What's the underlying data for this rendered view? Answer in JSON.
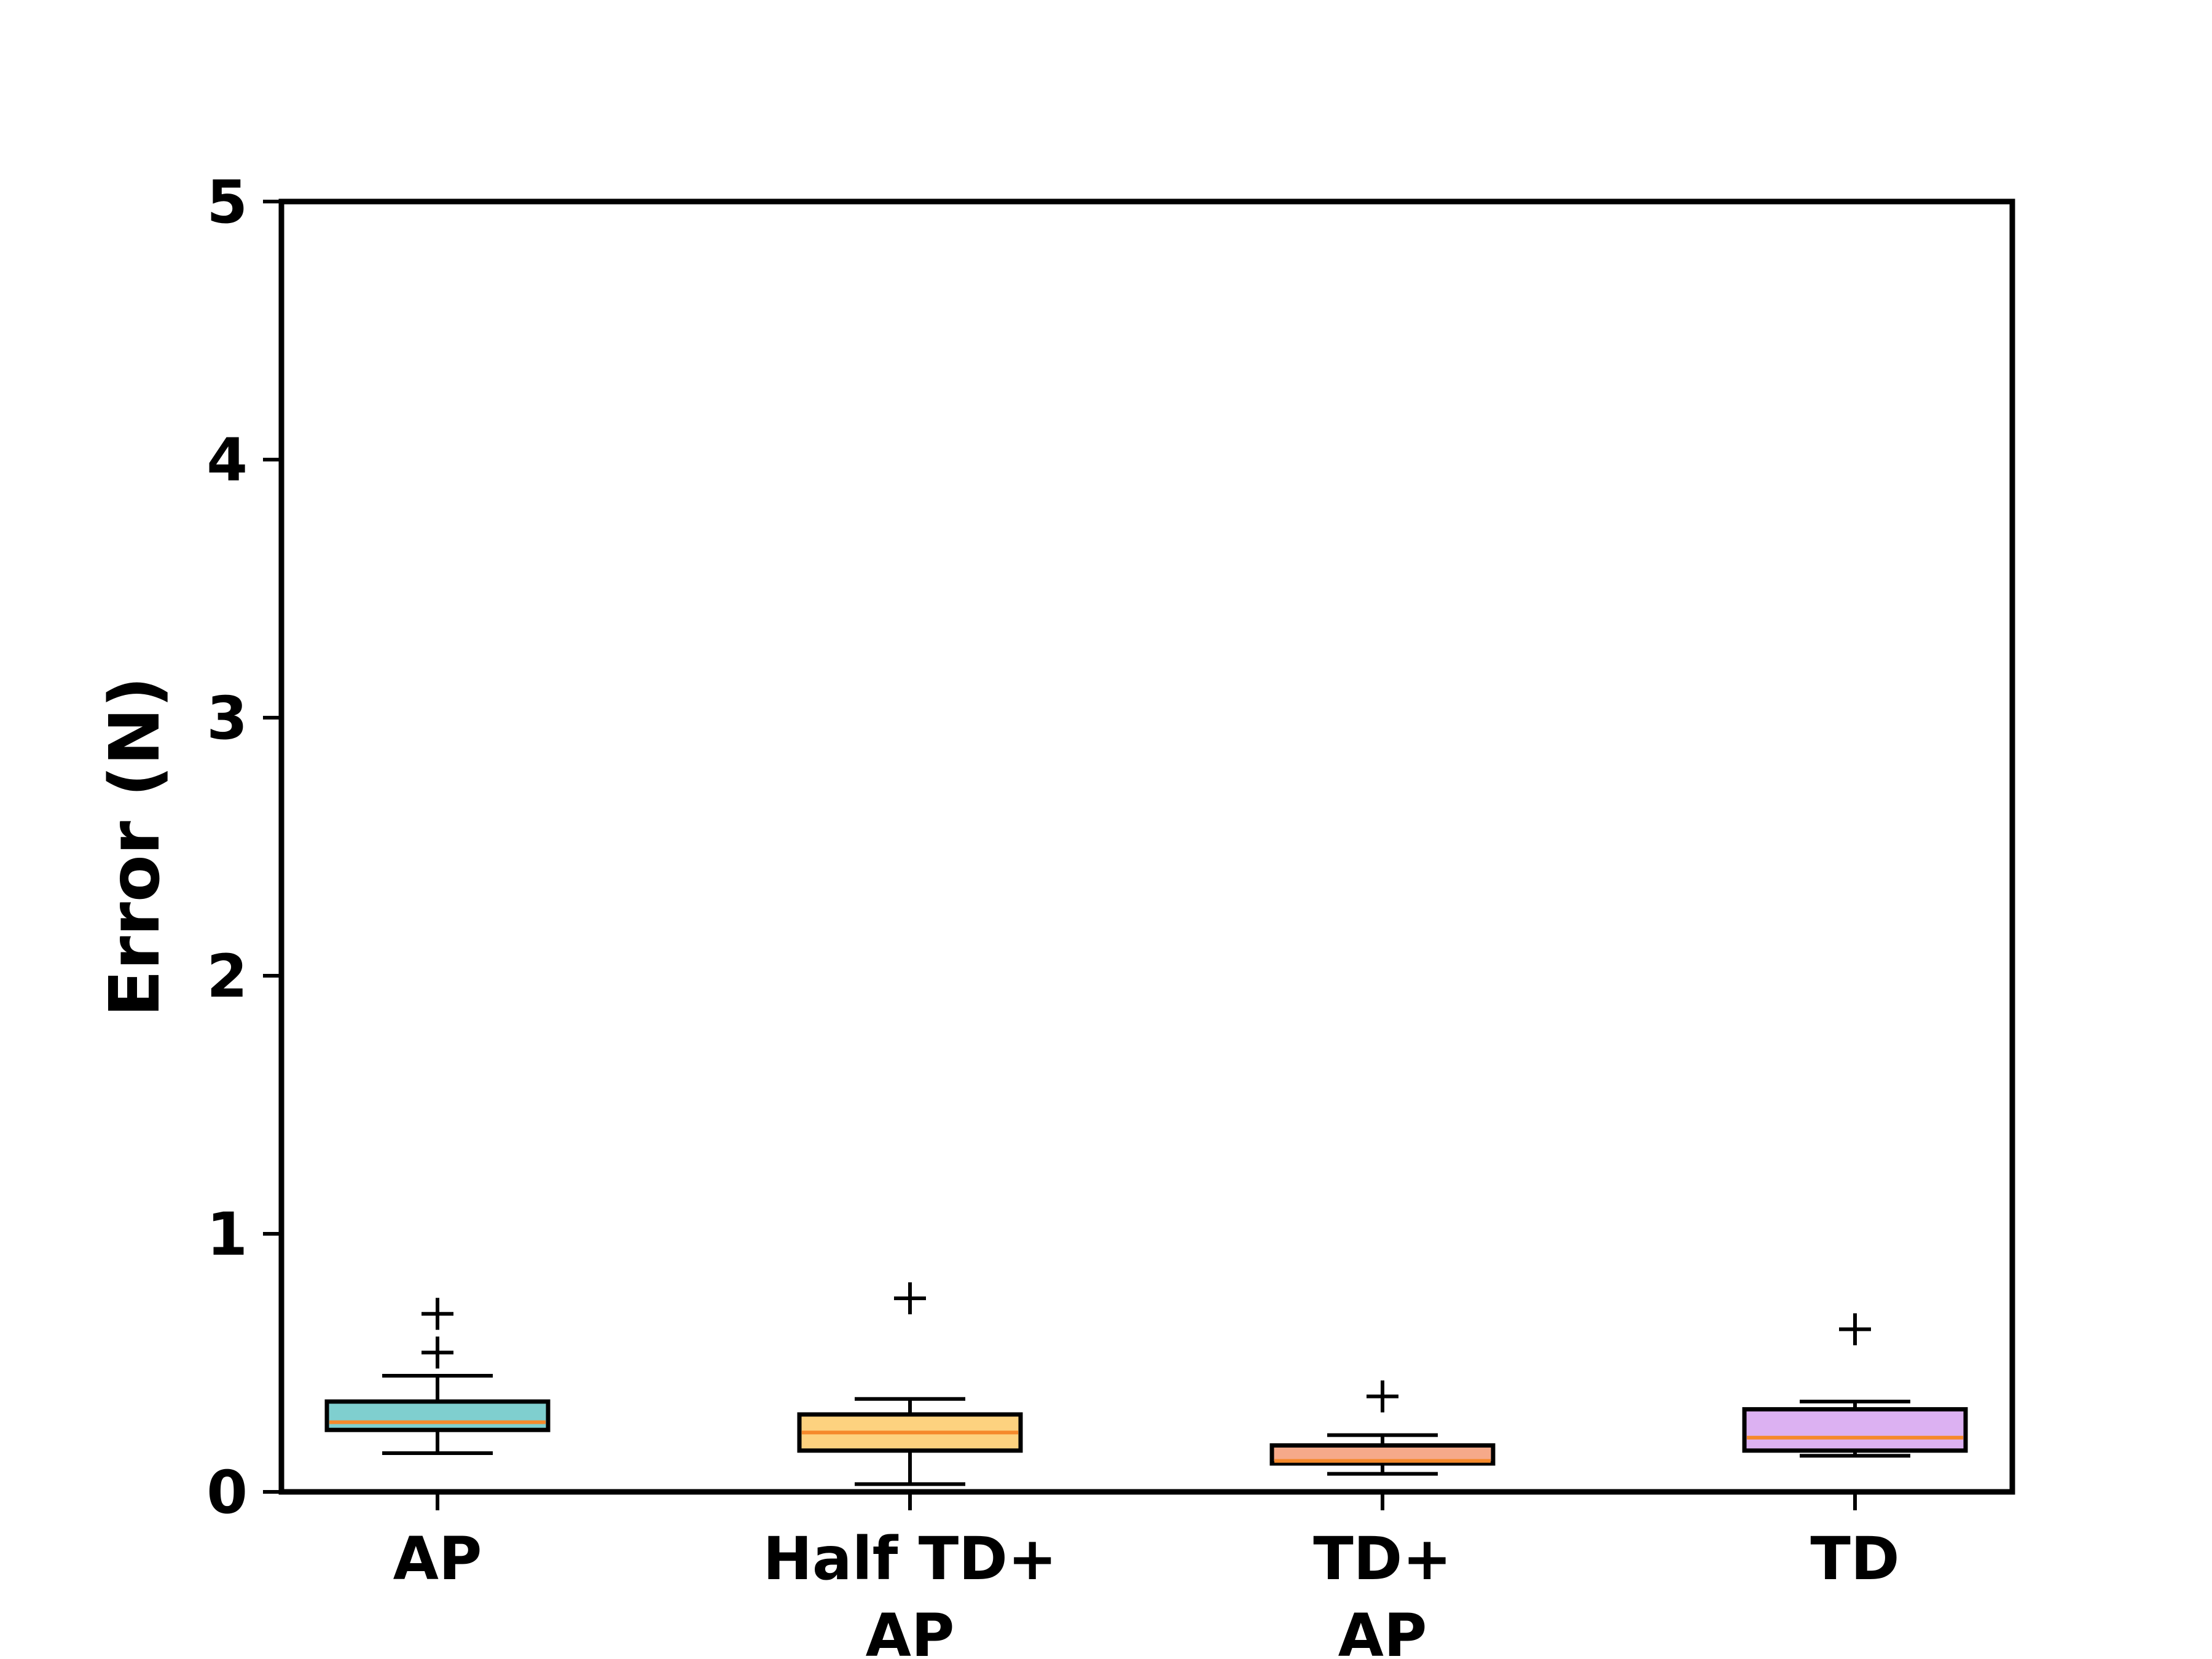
{
  "chart_data": {
    "type": "box",
    "title": "",
    "xlabel": "",
    "ylabel": "Error (N)",
    "ylim": [
      0,
      5
    ],
    "yticks": [
      "0",
      "1",
      "2",
      "3",
      "4",
      "5"
    ],
    "grid": false,
    "categories": [
      {
        "lines": [
          "AP"
        ]
      },
      {
        "lines": [
          "Half TD+",
          "AP"
        ]
      },
      {
        "lines": [
          "TD+",
          "AP"
        ]
      },
      {
        "lines": [
          "TD"
        ]
      }
    ],
    "boxes": [
      {
        "whisker_low": 0.15,
        "q1": 0.24,
        "median": 0.27,
        "q3": 0.35,
        "whisker_high": 0.45,
        "outliers": [
          0.54,
          0.69
        ],
        "color": "#7fcfcf"
      },
      {
        "whisker_low": 0.03,
        "q1": 0.16,
        "median": 0.23,
        "q3": 0.3,
        "whisker_high": 0.36,
        "outliers": [
          0.75
        ],
        "color": "#fdd27f"
      },
      {
        "whisker_low": 0.07,
        "q1": 0.11,
        "median": 0.12,
        "q3": 0.18,
        "whisker_high": 0.22,
        "outliers": [
          0.37
        ],
        "color": "#f6a98a"
      },
      {
        "whisker_low": 0.14,
        "q1": 0.16,
        "median": 0.21,
        "q3": 0.32,
        "whisker_high": 0.35,
        "outliers": [
          0.63
        ],
        "color": "#dcb1f2"
      }
    ],
    "median_color": "#f5892b"
  }
}
